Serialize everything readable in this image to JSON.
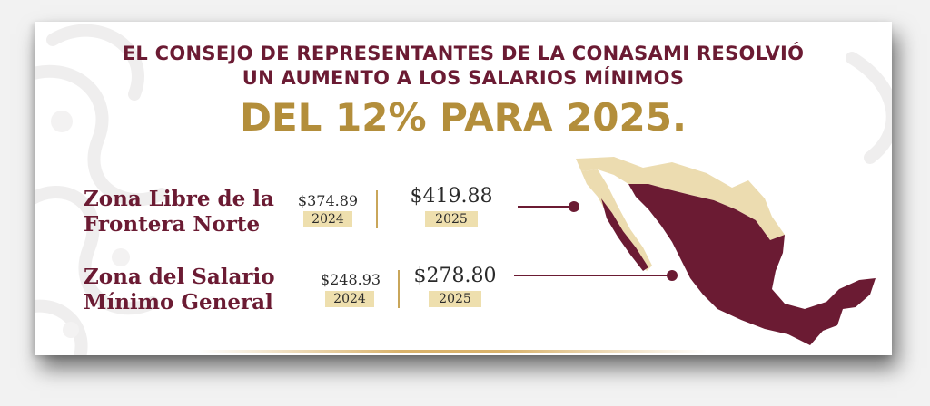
{
  "headline": {
    "line1": "EL CONSEJO DE REPRESENTANTES DE LA CONASAMI RESOLVIÓ",
    "line2": "UN AUMENTO A LOS SALARIOS MÍNIMOS",
    "highlight": "DEL 12% PARA 2025."
  },
  "zones": [
    {
      "name_line1": "Zona Libre de la",
      "name_line2": "Frontera Norte",
      "previous": {
        "amount": "$374.89",
        "year": "2024"
      },
      "current": {
        "amount": "$419.88",
        "year": "2025"
      }
    },
    {
      "name_line1": "Zona del Salario",
      "name_line2": "Mínimo General",
      "previous": {
        "amount": "$248.93",
        "year": "2024"
      },
      "current": {
        "amount": "$278.80",
        "year": "2025"
      }
    }
  ],
  "map": {
    "icon": "mexico-map-icon"
  },
  "colors": {
    "maroon": "#6b1b33",
    "gold": "#b38e3b",
    "year_badge": "#eedfae",
    "border_zone": "#ecdcb0"
  }
}
